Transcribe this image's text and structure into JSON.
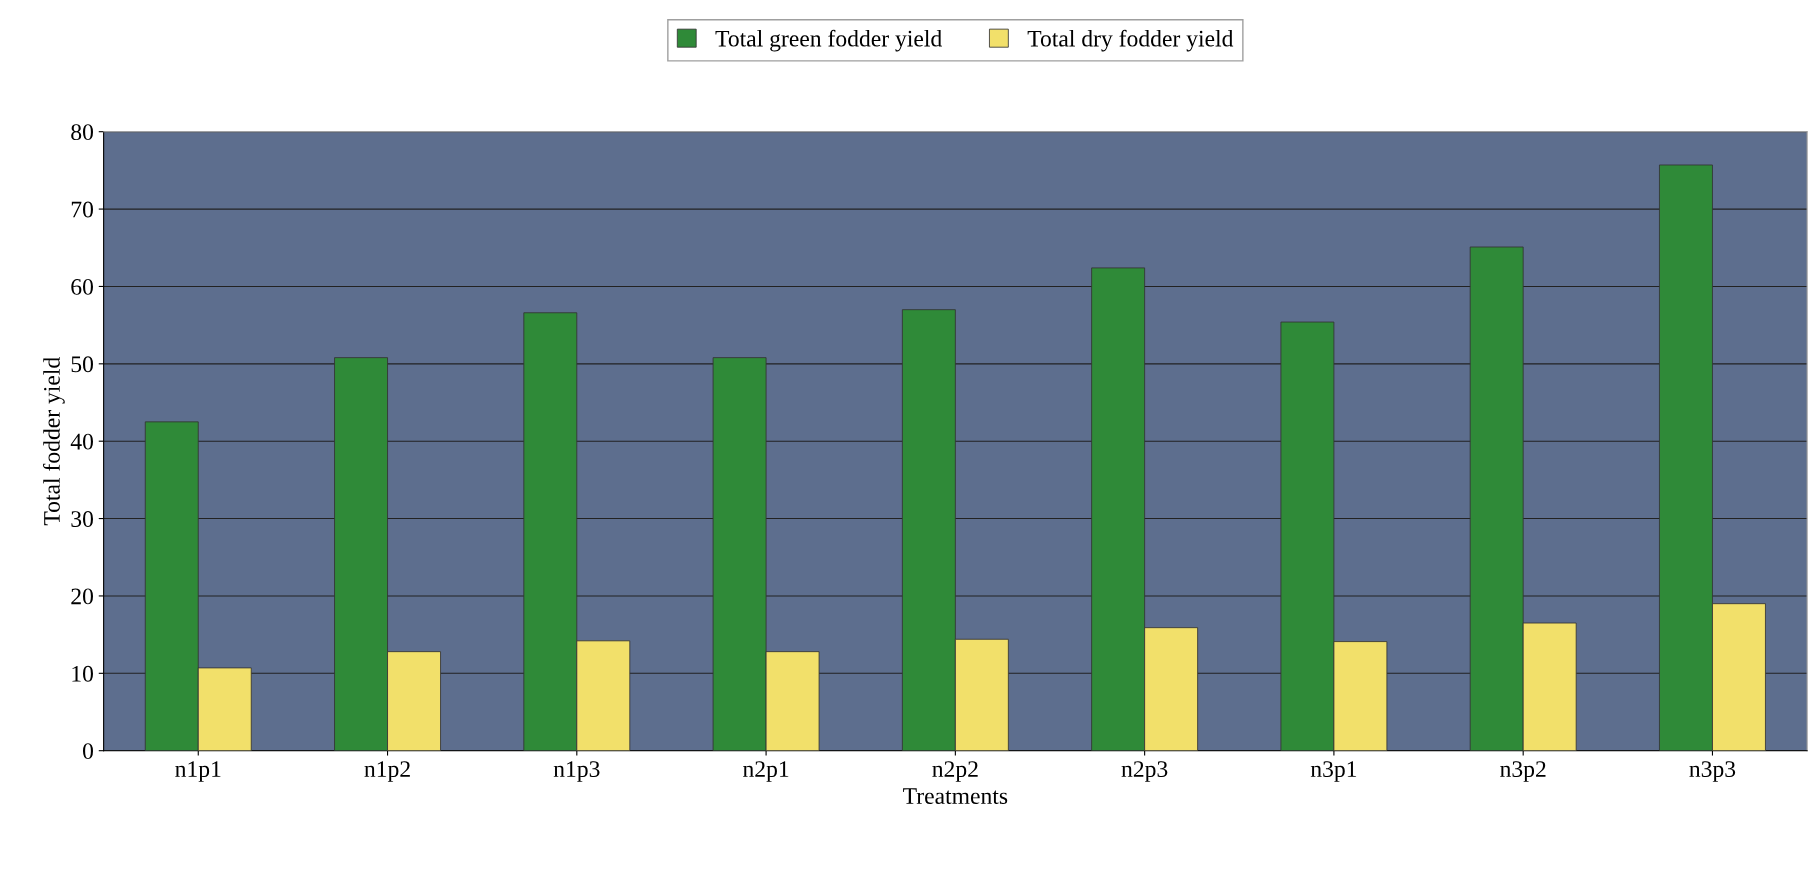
{
  "chart_data": {
    "type": "bar",
    "xlabel": "Treatments",
    "ylabel": "Total fodder yield",
    "categories": [
      "n1p1",
      "n1p2",
      "n1p3",
      "n2p1",
      "n2p2",
      "n2p3",
      "n3p1",
      "n3p2",
      "n3p3"
    ],
    "series": [
      {
        "name": "Total green fodder yield",
        "color": "#2f8a38",
        "values": [
          42.5,
          50.8,
          56.6,
          50.8,
          57.0,
          62.4,
          55.4,
          65.1,
          75.7
        ]
      },
      {
        "name": "Total dry fodder yield",
        "color": "#f2e06a",
        "values": [
          10.7,
          12.8,
          14.2,
          12.8,
          14.4,
          15.9,
          14.1,
          16.5,
          19.0
        ]
      }
    ],
    "ylim": [
      0,
      80
    ],
    "yticks": [
      0,
      10,
      20,
      30,
      40,
      50,
      60,
      70,
      80
    ],
    "grid": "y",
    "legend": "top"
  }
}
